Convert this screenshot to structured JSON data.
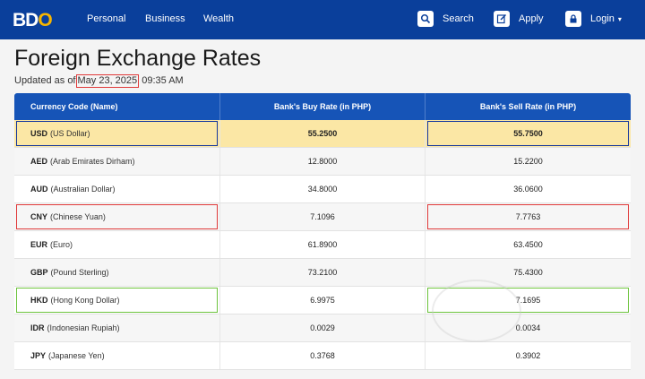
{
  "header": {
    "logo_b": "BD",
    "logo_o": "O",
    "nav": [
      "Personal",
      "Business",
      "Wealth"
    ],
    "search_label": "Search",
    "apply_label": "Apply",
    "login_label": "Login"
  },
  "page": {
    "title": "Foreign Exchange Rates",
    "updated_prefix": "Updated as of",
    "updated_date": "May 23, 2025",
    "updated_time": "09:35 AM"
  },
  "table": {
    "columns": [
      "Currency Code (Name)",
      "Bank's Buy Rate (in PHP)",
      "Bank's Sell Rate (in PHP)"
    ],
    "rows": [
      {
        "code": "USD",
        "name": "(US Dollar)",
        "buy": "55.2500",
        "sell": "55.7500"
      },
      {
        "code": "AED",
        "name": "(Arab Emirates Dirham)",
        "buy": "12.8000",
        "sell": "15.2200"
      },
      {
        "code": "AUD",
        "name": "(Australian Dollar)",
        "buy": "34.8000",
        "sell": "36.0600"
      },
      {
        "code": "CNY",
        "name": "(Chinese Yuan)",
        "buy": "7.1096",
        "sell": "7.7763"
      },
      {
        "code": "EUR",
        "name": "(Euro)",
        "buy": "61.8900",
        "sell": "63.4500"
      },
      {
        "code": "GBP",
        "name": "(Pound Sterling)",
        "buy": "73.2100",
        "sell": "75.4300"
      },
      {
        "code": "HKD",
        "name": "(Hong Kong Dollar)",
        "buy": "6.9975",
        "sell": "7.1695"
      },
      {
        "code": "IDR",
        "name": "(Indonesian Rupiah)",
        "buy": "0.0029",
        "sell": "0.0034"
      },
      {
        "code": "JPY",
        "name": "(Japanese Yen)",
        "buy": "0.3768",
        "sell": "0.3902"
      }
    ]
  },
  "colors": {
    "header_bg": "#0a3f9b",
    "table_header_bg": "#1654b7",
    "highlight_row": "#fbe7a5",
    "blue_frame": "#15379e",
    "red_frame": "#e03a3a",
    "green_frame": "#6cc33c"
  }
}
